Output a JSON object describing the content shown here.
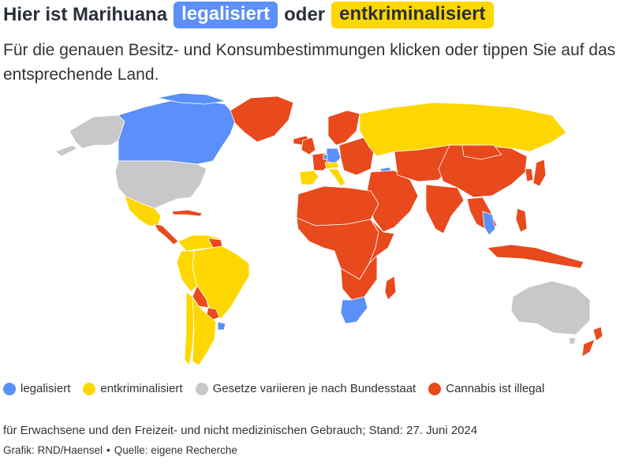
{
  "title": {
    "prefix": "Hier ist Marihuana",
    "legal_word": "legalisiert",
    "connector": "oder",
    "decrim_word": "entkriminalisiert"
  },
  "subtitle": "Für die genauen Besitz- und Konsumbestimmungen klicken oder tippen Sie auf das entsprechende Land.",
  "colors": {
    "legalisiert": "#5b8ff9",
    "entkriminalisiert": "#ffd700",
    "variiert": "#c8c8c8",
    "illegal": "#e8491d"
  },
  "legend": [
    {
      "label": "legalisiert",
      "color_key": "legalisiert"
    },
    {
      "label": "entkriminalisiert",
      "color_key": "entkriminalisiert"
    },
    {
      "label": "Gesetze variieren je nach Bundesstaat",
      "color_key": "variiert"
    },
    {
      "label": "Cannabis ist illegal",
      "color_key": "illegal"
    }
  ],
  "note": "für Erwachsene und den Freizeit- und nicht medizinischen Gebrauch; Stand: 27. Juni 2024",
  "credit": {
    "grafik": "Grafik: RND/Haensel",
    "separator": "•",
    "quelle": "Quelle: eigene Recherche"
  }
}
